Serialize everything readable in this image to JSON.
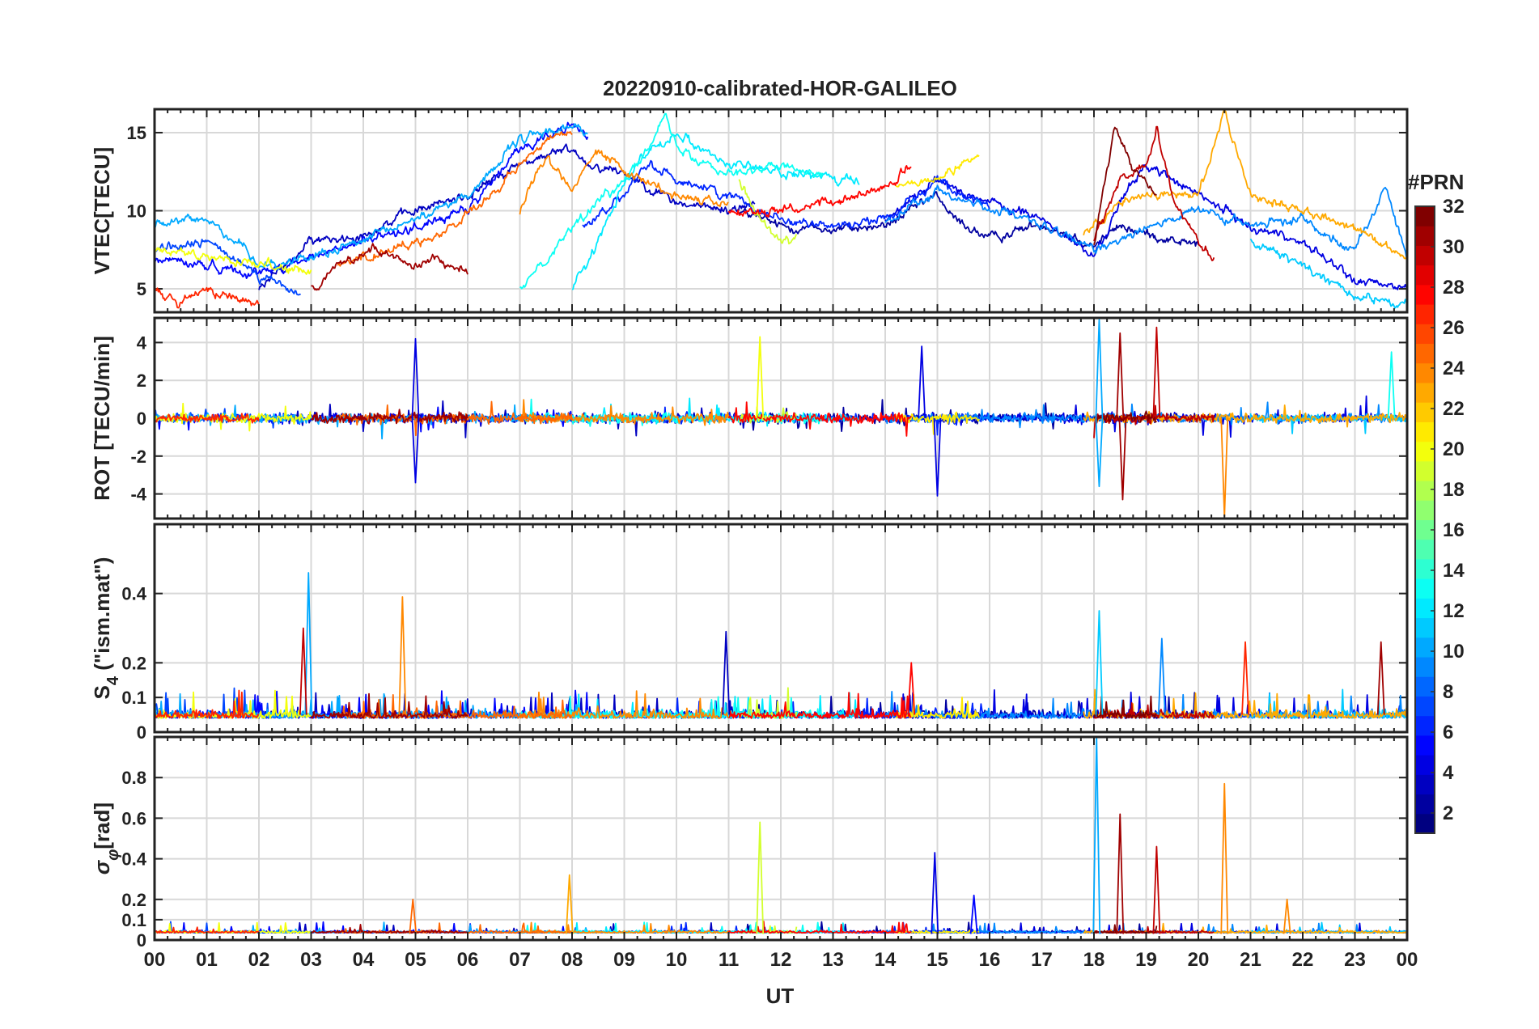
{
  "chart_data": {
    "type": "line",
    "title": "20220910-calibrated-HOR-GALILEO",
    "xlabel": "UT",
    "xlim": [
      0,
      24
    ],
    "x_ticks": [
      "00",
      "01",
      "02",
      "03",
      "04",
      "05",
      "06",
      "07",
      "08",
      "09",
      "10",
      "11",
      "12",
      "13",
      "14",
      "15",
      "16",
      "17",
      "18",
      "19",
      "20",
      "21",
      "22",
      "23",
      "00"
    ],
    "panels": [
      {
        "id": "vtec",
        "ylabel": "VTEC[TECU]",
        "ylim": [
          3.5,
          16.5
        ],
        "y_ticks": [
          5,
          10,
          15
        ],
        "y_tick_labels": [
          "5",
          "10",
          "15"
        ],
        "typical_range": [
          4,
          16
        ]
      },
      {
        "id": "rot",
        "ylabel": "ROT [TECU/min]",
        "ylim": [
          -5.3,
          5.3
        ],
        "y_ticks": [
          -4,
          -2,
          0,
          2,
          4
        ],
        "y_tick_labels": [
          "-4",
          "-2",
          "0",
          "2",
          "4"
        ],
        "noise_amplitude": 0.35,
        "spikes": [
          {
            "x": 5.0,
            "value": 4.2,
            "prn": 4
          },
          {
            "x": 5.0,
            "value": -3.4,
            "prn": 4
          },
          {
            "x": 11.6,
            "value": 4.3,
            "prn": 20
          },
          {
            "x": 14.7,
            "value": 3.8,
            "prn": 4
          },
          {
            "x": 15.0,
            "value": -4.1,
            "prn": 4
          },
          {
            "x": 18.1,
            "value": 5.2,
            "prn": 10
          },
          {
            "x": 18.1,
            "value": -3.6,
            "prn": 10
          },
          {
            "x": 18.5,
            "value": 4.5,
            "prn": 31
          },
          {
            "x": 18.55,
            "value": -4.3,
            "prn": 31
          },
          {
            "x": 19.2,
            "value": 4.8,
            "prn": 30
          },
          {
            "x": 20.5,
            "value": -5.2,
            "prn": 24
          },
          {
            "x": 23.7,
            "value": 3.5,
            "prn": 13
          }
        ]
      },
      {
        "id": "s4",
        "ylabel": "S4 (\"ism.mat\")",
        "ylabel_main": "S",
        "ylabel_sub": "4",
        "ylabel_rest": " (\"ism.mat\")",
        "ylim": [
          0,
          0.6
        ],
        "y_ticks": [
          0,
          0.1,
          0.2,
          0.4
        ],
        "y_tick_labels": [
          "0",
          "0.1",
          "0.2",
          "0.4"
        ],
        "spikes": [
          {
            "x": 2.95,
            "value": 0.46,
            "prn": 10
          },
          {
            "x": 2.85,
            "value": 0.3,
            "prn": 30
          },
          {
            "x": 4.75,
            "value": 0.39,
            "prn": 24
          },
          {
            "x": 10.95,
            "value": 0.29,
            "prn": 3
          },
          {
            "x": 14.5,
            "value": 0.2,
            "prn": 28
          },
          {
            "x": 18.1,
            "value": 0.35,
            "prn": 11
          },
          {
            "x": 19.3,
            "value": 0.27,
            "prn": 9
          },
          {
            "x": 20.9,
            "value": 0.26,
            "prn": 27
          },
          {
            "x": 23.5,
            "value": 0.26,
            "prn": 31
          }
        ]
      },
      {
        "id": "sigma_phi",
        "ylabel": "σφ[rad]",
        "ylabel_main": "σ",
        "ylabel_sub": "φ",
        "ylabel_rest": "[rad]",
        "ylim": [
          0,
          1.0
        ],
        "y_ticks": [
          0,
          0.1,
          0.2,
          0.4,
          0.6,
          0.8
        ],
        "y_tick_labels": [
          "0",
          "0.1",
          "0.2",
          "0.4",
          "0.6",
          "0.8"
        ],
        "spikes": [
          {
            "x": 4.95,
            "value": 0.2,
            "prn": 25
          },
          {
            "x": 7.95,
            "value": 0.32,
            "prn": 23
          },
          {
            "x": 11.6,
            "value": 0.58,
            "prn": 19
          },
          {
            "x": 14.95,
            "value": 0.43,
            "prn": 4
          },
          {
            "x": 15.7,
            "value": 0.22,
            "prn": 5
          },
          {
            "x": 18.05,
            "value": 1.0,
            "prn": 10
          },
          {
            "x": 18.5,
            "value": 0.62,
            "prn": 31
          },
          {
            "x": 19.2,
            "value": 0.46,
            "prn": 30
          },
          {
            "x": 20.5,
            "value": 0.77,
            "prn": 24
          },
          {
            "x": 21.7,
            "value": 0.2,
            "prn": 24
          }
        ]
      }
    ],
    "series": [
      {
        "prn": 2,
        "start": 11.2,
        "end": 20.0,
        "vtec_pts": [
          [
            11.2,
            10
          ],
          [
            12,
            9
          ],
          [
            13,
            8.8
          ],
          [
            14,
            9
          ],
          [
            15,
            11
          ],
          [
            15.3,
            9.5
          ],
          [
            16,
            8.2
          ],
          [
            17,
            9.2
          ],
          [
            18,
            7.8
          ],
          [
            18.5,
            9
          ],
          [
            19,
            8.5
          ],
          [
            20,
            7.8
          ]
        ]
      },
      {
        "prn": 3,
        "start": 2.0,
        "end": 11.5,
        "vtec_pts": [
          [
            2,
            5
          ],
          [
            3,
            8
          ],
          [
            4,
            8.5
          ],
          [
            5,
            10
          ],
          [
            6,
            11
          ],
          [
            7,
            13
          ],
          [
            8,
            14
          ],
          [
            8.3,
            13
          ],
          [
            9,
            12.5
          ],
          [
            10,
            10.5
          ],
          [
            11,
            10
          ],
          [
            11.5,
            10.5
          ]
        ]
      },
      {
        "prn": 4,
        "start": 14.0,
        "end": 24.0,
        "vtec_pts": [
          [
            14,
            9.5
          ],
          [
            15,
            12
          ],
          [
            16,
            10.5
          ],
          [
            17,
            9.5
          ],
          [
            18,
            7
          ],
          [
            18.5,
            10.5
          ],
          [
            19,
            13
          ],
          [
            20,
            11
          ],
          [
            21,
            9
          ],
          [
            22,
            8
          ],
          [
            23,
            5.5
          ],
          [
            24,
            5
          ]
        ]
      },
      {
        "prn": 5,
        "start": 0.0,
        "end": 8.3,
        "vtec_pts": [
          [
            0,
            7
          ],
          [
            1,
            6.5
          ],
          [
            2,
            6
          ],
          [
            3,
            7
          ],
          [
            4,
            8
          ],
          [
            5,
            9
          ],
          [
            6,
            10
          ],
          [
            7,
            14
          ],
          [
            8,
            15.5
          ],
          [
            8.3,
            14.8
          ]
        ]
      },
      {
        "prn": 6,
        "start": 8.2,
        "end": 16.0,
        "vtec_pts": [
          [
            8.2,
            9
          ],
          [
            9,
            11
          ],
          [
            9.5,
            13
          ],
          [
            10,
            12
          ],
          [
            11,
            11
          ],
          [
            12,
            9.5
          ],
          [
            13,
            9
          ],
          [
            14,
            9.5
          ],
          [
            15,
            12
          ],
          [
            16,
            10
          ]
        ]
      },
      {
        "prn": 7,
        "start": 0.0,
        "end": 2.8,
        "vtec_pts": [
          [
            0,
            7.5
          ],
          [
            1,
            8
          ],
          [
            1.5,
            7
          ],
          [
            2,
            6
          ],
          [
            2.8,
            4.5
          ]
        ]
      },
      {
        "prn": 9,
        "start": 14.0,
        "end": 24.0,
        "vtec_pts": [
          [
            14,
            9.2
          ],
          [
            15,
            11.2
          ],
          [
            16,
            10.2
          ],
          [
            17,
            9
          ],
          [
            18,
            7.5
          ],
          [
            19,
            9
          ],
          [
            20,
            10
          ],
          [
            21,
            9
          ],
          [
            22,
            9.5
          ],
          [
            23,
            7.5
          ],
          [
            23.6,
            11.5
          ],
          [
            24,
            7
          ]
        ]
      },
      {
        "prn": 10,
        "start": 0.0,
        "end": 8.3,
        "vtec_pts": [
          [
            0,
            9
          ],
          [
            1,
            9.5
          ],
          [
            1.6,
            8
          ],
          [
            2,
            6.5
          ],
          [
            3,
            7
          ],
          [
            4,
            8
          ],
          [
            5,
            9.5
          ],
          [
            6,
            11
          ],
          [
            7,
            14.5
          ],
          [
            8,
            15.5
          ],
          [
            8.3,
            15
          ]
        ]
      },
      {
        "prn": 11,
        "start": 21.0,
        "end": 24.0,
        "vtec_pts": [
          [
            21,
            8
          ],
          [
            22,
            6.5
          ],
          [
            23,
            4.5
          ],
          [
            24,
            4
          ]
        ]
      },
      {
        "prn": 12,
        "start": 8.0,
        "end": 13.5,
        "vtec_pts": [
          [
            8,
            5
          ],
          [
            8.5,
            8
          ],
          [
            9,
            12
          ],
          [
            9.5,
            14
          ],
          [
            10,
            15
          ],
          [
            11,
            13
          ],
          [
            12,
            12.5
          ],
          [
            13,
            12
          ],
          [
            13.5,
            11.8
          ]
        ]
      },
      {
        "prn": 13,
        "start": 7.0,
        "end": 12.8,
        "vtec_pts": [
          [
            7,
            5
          ],
          [
            7.5,
            7
          ],
          [
            8,
            9
          ],
          [
            9,
            12
          ],
          [
            9.8,
            16
          ],
          [
            10,
            14
          ],
          [
            11,
            12.5
          ],
          [
            12,
            12.8
          ],
          [
            12.8,
            12.5
          ]
        ]
      },
      {
        "prn": 19,
        "start": 11.2,
        "end": 12.3,
        "vtec_pts": [
          [
            11.2,
            12
          ],
          [
            11.6,
            9.5
          ],
          [
            12,
            8
          ],
          [
            12.3,
            8.2
          ]
        ]
      },
      {
        "prn": 20,
        "start": 0.0,
        "end": 3.0,
        "vtec_pts": [
          [
            0,
            7.5
          ],
          [
            1,
            7
          ],
          [
            2,
            6.5
          ],
          [
            3,
            6
          ]
        ]
      },
      {
        "prn": 21,
        "start": 14.2,
        "end": 15.8,
        "vtec_pts": [
          [
            14.2,
            11.5
          ],
          [
            15,
            12
          ],
          [
            15.8,
            13.5
          ]
        ]
      },
      {
        "prn": 23,
        "start": 17.8,
        "end": 24.0,
        "vtec_pts": [
          [
            17.8,
            8.5
          ],
          [
            18.5,
            10.5
          ],
          [
            19,
            11
          ],
          [
            20,
            11
          ],
          [
            20.5,
            16.5
          ],
          [
            21,
            11
          ],
          [
            22,
            10
          ],
          [
            23,
            9
          ],
          [
            24,
            7
          ]
        ]
      },
      {
        "prn": 24,
        "start": 7.0,
        "end": 11.0,
        "vtec_pts": [
          [
            7,
            10
          ],
          [
            7.5,
            13.5
          ],
          [
            8,
            11.5
          ],
          [
            8.5,
            14
          ],
          [
            9,
            12.5
          ],
          [
            10,
            11
          ],
          [
            11,
            10.5
          ]
        ]
      },
      {
        "prn": 25,
        "start": 3.5,
        "end": 8.0,
        "vtec_pts": [
          [
            3.5,
            6.5
          ],
          [
            4.5,
            7.5
          ],
          [
            5.5,
            8.5
          ],
          [
            6.5,
            11
          ],
          [
            7,
            13
          ],
          [
            7.5,
            14.5
          ],
          [
            8,
            15
          ]
        ]
      },
      {
        "prn": 27,
        "start": 0.0,
        "end": 2.0,
        "vtec_pts": [
          [
            0,
            5
          ],
          [
            0.5,
            4
          ],
          [
            1,
            5
          ],
          [
            1.5,
            4.5
          ],
          [
            2,
            4
          ]
        ]
      },
      {
        "prn": 28,
        "start": 11.0,
        "end": 14.5,
        "vtec_pts": [
          [
            11,
            10
          ],
          [
            12,
            10
          ],
          [
            13,
            10.5
          ],
          [
            14,
            11.5
          ],
          [
            14.5,
            12.8
          ]
        ]
      },
      {
        "prn": 30,
        "start": 18.0,
        "end": 20.3,
        "vtec_pts": [
          [
            18,
            8
          ],
          [
            18.5,
            12
          ],
          [
            19,
            13
          ],
          [
            19.2,
            15.5
          ],
          [
            19.5,
            11
          ],
          [
            20,
            8
          ],
          [
            20.3,
            7
          ]
        ]
      },
      {
        "prn": 31,
        "start": 3.0,
        "end": 6.0,
        "vtec_pts": [
          [
            3,
            5
          ],
          [
            3.5,
            6.5
          ],
          [
            4.2,
            7.5
          ],
          [
            5,
            6.5
          ],
          [
            5.5,
            6.8
          ],
          [
            6,
            6
          ]
        ]
      },
      {
        "prn": 32,
        "start": 18.0,
        "end": 19.2,
        "vtec_pts": [
          [
            18,
            8
          ],
          [
            18.4,
            15.3
          ],
          [
            18.7,
            13
          ],
          [
            19.2,
            11
          ]
        ]
      }
    ],
    "colorbar": {
      "label": "#PRN",
      "range": [
        1,
        32
      ],
      "colormap": "jet",
      "ticks": [
        2,
        4,
        6,
        8,
        10,
        12,
        14,
        16,
        18,
        20,
        22,
        24,
        26,
        28,
        30,
        32
      ],
      "tick_labels": [
        "2",
        "4",
        "6",
        "8",
        "10",
        "12",
        "14",
        "16",
        "18",
        "20",
        "22",
        "24",
        "26",
        "28",
        "30",
        "32"
      ]
    }
  }
}
